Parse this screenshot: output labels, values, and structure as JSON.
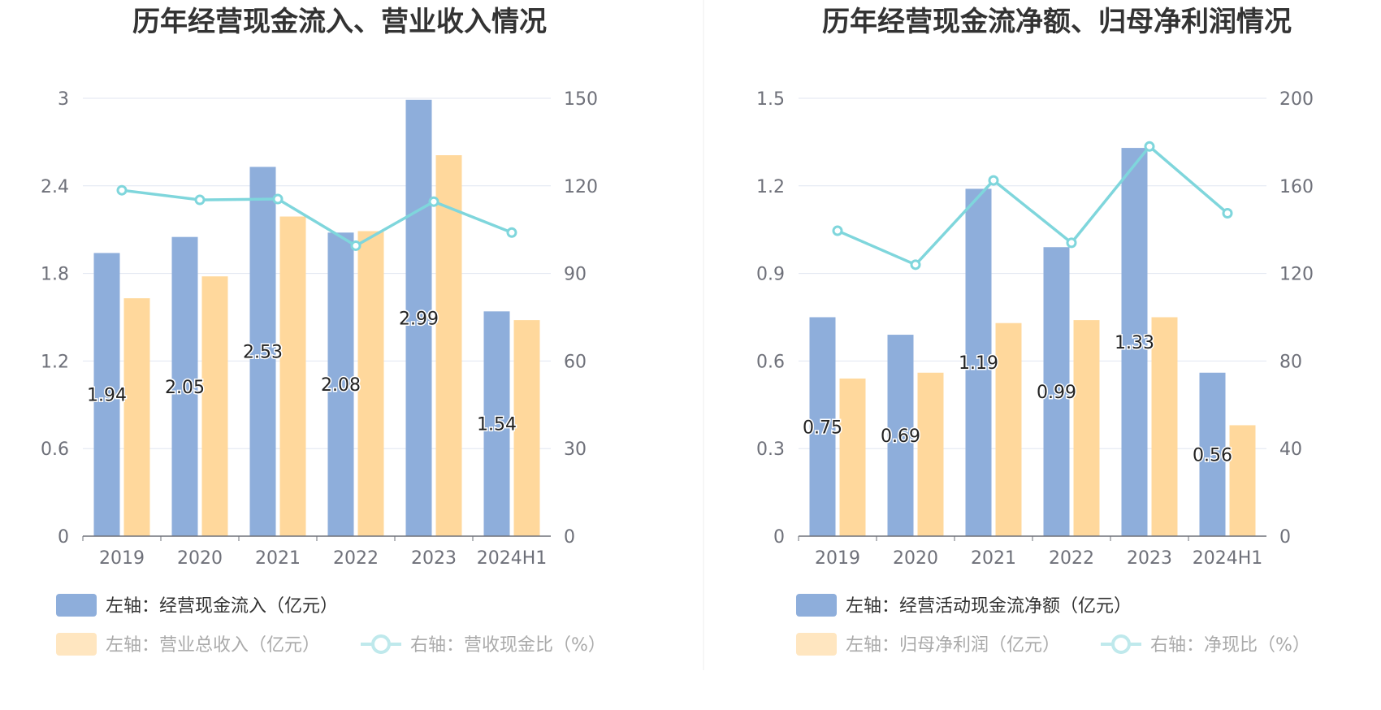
{
  "colors": {
    "bar_primary": "#8eaedb",
    "bar_secondary": "#ffd89c",
    "line": "#7fd6dc",
    "grid": "#e0e6f1",
    "axis": "#6e7079",
    "divider": "#eeeeee"
  },
  "chart_data": [
    {
      "type": "bar",
      "title": "历年经营现金流入、营业收入情况",
      "categories": [
        "2019",
        "2020",
        "2021",
        "2022",
        "2023",
        "2024H1"
      ],
      "left_axis": {
        "ticks": [
          "0",
          "0.6",
          "1.2",
          "1.8",
          "2.4",
          "3"
        ],
        "ylim": [
          0,
          3
        ]
      },
      "right_axis": {
        "ticks": [
          "0",
          "30",
          "60",
          "90",
          "120",
          "150"
        ],
        "ylim": [
          0,
          150
        ]
      },
      "series": [
        {
          "name": "左轴：经营现金流入（亿元）",
          "kind": "bar",
          "axis": "left",
          "color_key": "bar_primary",
          "values": [
            1.94,
            2.05,
            2.53,
            2.08,
            2.99,
            1.54
          ],
          "labels": [
            "1.94",
            "2.05",
            "2.53",
            "2.08",
            "2.99",
            "1.54"
          ]
        },
        {
          "name": "左轴：营业总收入（亿元）",
          "kind": "bar",
          "axis": "left",
          "color_key": "bar_secondary",
          "values": [
            1.63,
            1.78,
            2.19,
            2.09,
            2.61,
            1.48
          ]
        },
        {
          "name": "右轴：营收现金比（%）",
          "kind": "line",
          "axis": "right",
          "color_key": "line",
          "values": [
            118.5,
            115.2,
            115.5,
            99.5,
            114.6,
            104.0
          ]
        }
      ]
    },
    {
      "type": "bar",
      "title": "历年经营现金流净额、归母净利润情况",
      "categories": [
        "2019",
        "2020",
        "2021",
        "2022",
        "2023",
        "2024H1"
      ],
      "left_axis": {
        "ticks": [
          "0",
          "0.3",
          "0.6",
          "0.9",
          "1.2",
          "1.5"
        ],
        "ylim": [
          0,
          1.5
        ]
      },
      "right_axis": {
        "ticks": [
          "0",
          "40",
          "80",
          "120",
          "160",
          "200"
        ],
        "ylim": [
          0,
          200
        ]
      },
      "series": [
        {
          "name": "左轴：经营活动现金流净额（亿元）",
          "kind": "bar",
          "axis": "left",
          "color_key": "bar_primary",
          "values": [
            0.75,
            0.69,
            1.19,
            0.99,
            1.33,
            0.56
          ],
          "labels": [
            "0.75",
            "0.69",
            "1.19",
            "0.99",
            "1.33",
            "0.56"
          ]
        },
        {
          "name": "左轴：归母净利润（亿元）",
          "kind": "bar",
          "axis": "left",
          "color_key": "bar_secondary",
          "values": [
            0.54,
            0.56,
            0.73,
            0.74,
            0.75,
            0.38
          ]
        },
        {
          "name": "右轴：净现比（%）",
          "kind": "line",
          "axis": "right",
          "color_key": "line",
          "values": [
            139.5,
            124.0,
            162.5,
            134.0,
            178.0,
            147.5
          ]
        }
      ]
    }
  ]
}
